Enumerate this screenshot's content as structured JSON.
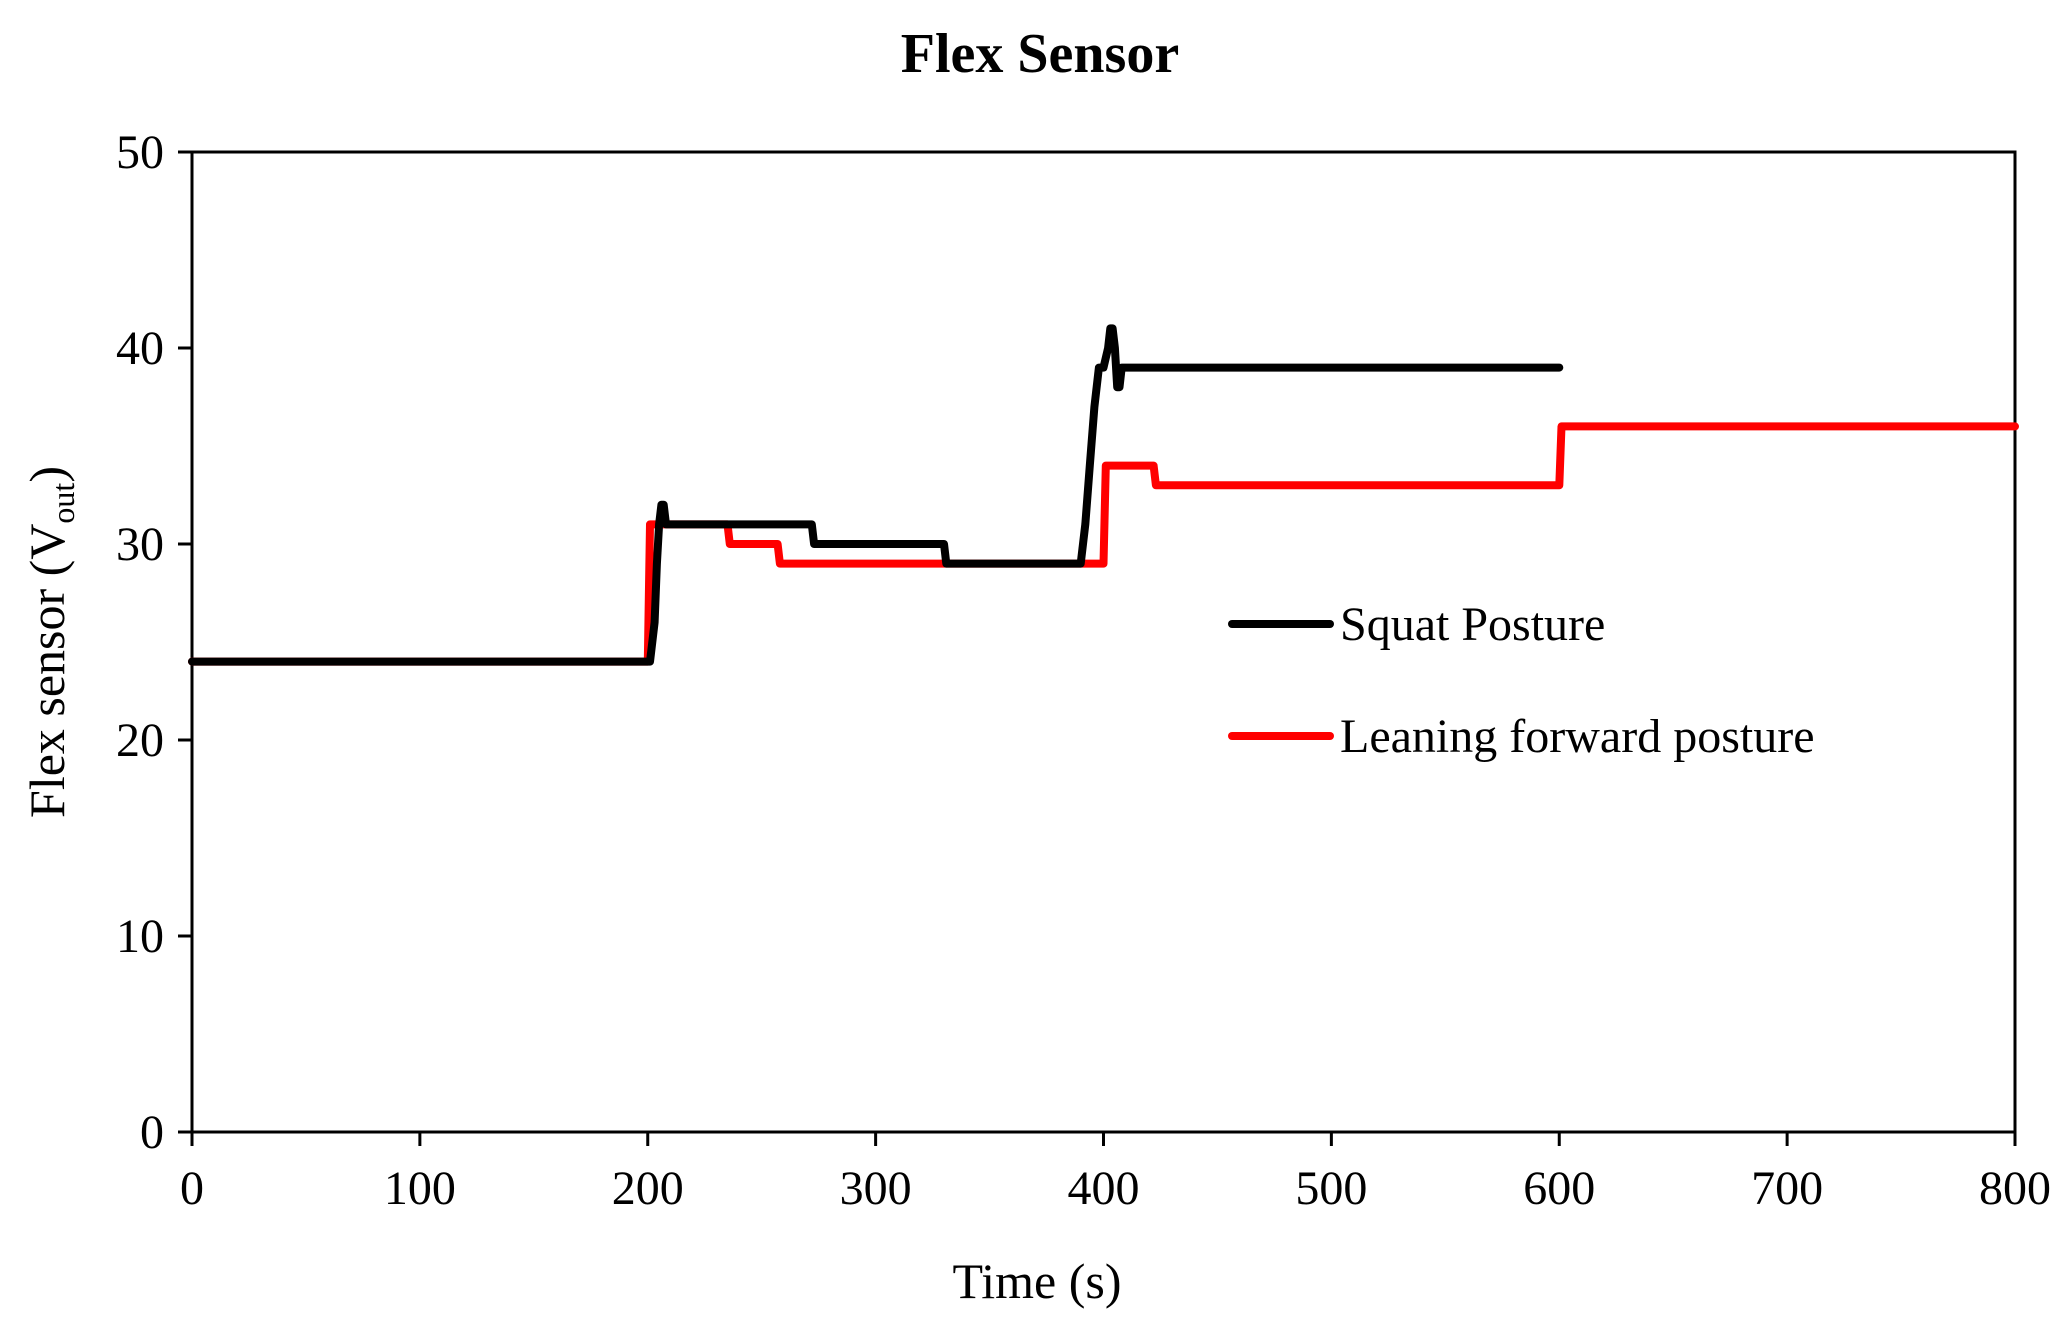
{
  "chart_data": {
    "type": "line",
    "title": "Flex Sensor",
    "xlabel": "Time (s)",
    "ylabel_main": "Flex sensor (V",
    "ylabel_sub": "out",
    "ylabel_close": ")",
    "xlim": [
      0,
      800
    ],
    "ylim": [
      0,
      50
    ],
    "xticks": [
      0,
      100,
      200,
      300,
      400,
      500,
      600,
      700,
      800
    ],
    "yticks": [
      0,
      10,
      20,
      30,
      40,
      50
    ],
    "xtick_labels": [
      "0",
      "100",
      "200",
      "300",
      "400",
      "500",
      "600",
      "700",
      "800"
    ],
    "ytick_labels": [
      "0",
      "10",
      "20",
      "30",
      "40",
      "50"
    ],
    "grid": false,
    "legend_position": "center-right",
    "series": [
      {
        "name": "Squat Posture",
        "color": "#000000",
        "x": [
          0,
          201,
          203,
          204,
          205,
          206,
          207,
          208,
          209,
          272,
          273,
          330,
          331,
          390,
          391,
          392,
          394,
          396,
          398,
          400,
          402,
          403,
          404,
          405,
          406,
          407,
          408,
          409,
          410,
          600
        ],
        "y": [
          24,
          24,
          26,
          29,
          31,
          32,
          32,
          31,
          31,
          31,
          30,
          30,
          29,
          29,
          30,
          31,
          34,
          37,
          39,
          39,
          40,
          41,
          41,
          40,
          38,
          38,
          39,
          39,
          39,
          39
        ]
      },
      {
        "name": "Leaning forward posture",
        "color": "#ff0000",
        "x": [
          0,
          200,
          201,
          235,
          236,
          257,
          258,
          400,
          401,
          422,
          423,
          600,
          601,
          800
        ],
        "y": [
          24,
          24,
          31,
          31,
          30,
          30,
          29,
          29,
          34,
          34,
          33,
          33,
          36,
          36
        ]
      }
    ]
  }
}
